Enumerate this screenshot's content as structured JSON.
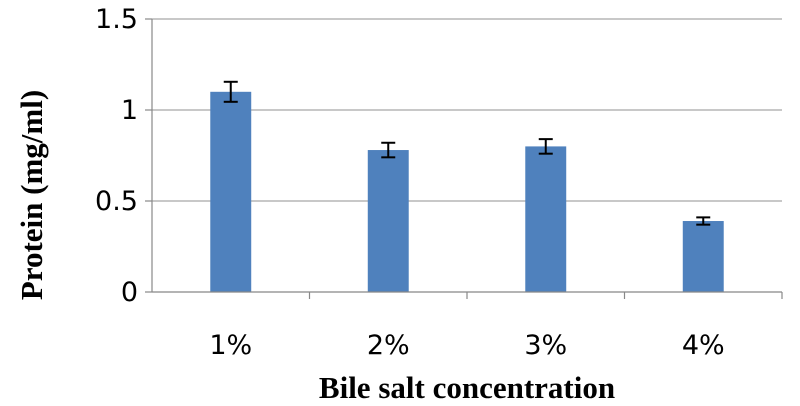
{
  "chart_data": {
    "type": "bar",
    "title": "",
    "xlabel": "Bile salt concentration",
    "ylabel": "Protein (mg/ml)",
    "categories": [
      "1%",
      "2%",
      "3%",
      "4%"
    ],
    "series": [
      {
        "values": [
          1.1,
          0.78,
          0.8,
          0.39
        ],
        "error": [
          0.055,
          0.04,
          0.04,
          0.02
        ],
        "color": "#4f81bd"
      }
    ],
    "ylim": [
      0,
      1.5
    ],
    "yticks": [
      0,
      0.5,
      1,
      1.5
    ],
    "ytick_labels": [
      "0",
      "0.5",
      "1",
      "1.5"
    ],
    "grid": true,
    "legend": "none"
  }
}
